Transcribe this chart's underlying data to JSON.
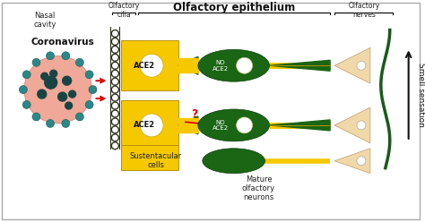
{
  "bg_color": "#ffffff",
  "label_nasal": "Nasal\ncavity",
  "label_olfactory_cilia": "Olfactory\ncilia",
  "label_olfactory_epithelium": "Olfactory epithelium",
  "label_olfactory_nerves": "Olfactory\nnerves",
  "label_coronavirus": "Coronavirus",
  "label_sustentacular": "Sustentacular\ncells",
  "label_mature": "Mature\nolfactory\nneurons",
  "label_smell": "Smell sensation",
  "label_ace2_1": "ACE2",
  "label_ace2_2": "ACE2",
  "label_no_ace2_1": "NO\nACE2",
  "label_no_ace2_2": "NO\nACE2",
  "color_yellow": "#F5C800",
  "color_dark_yellow": "#B89000",
  "color_green": "#1a6614",
  "color_beige": "#F0D8A8",
  "color_beige_border": "#C8A878",
  "color_red": "#DD0000",
  "color_virus_pink": "#F0A898",
  "color_virus_spike": "#2a8888",
  "color_virus_dark": "#1a4444",
  "color_cilia": "#555533",
  "color_nerve": "#1a5a1a"
}
